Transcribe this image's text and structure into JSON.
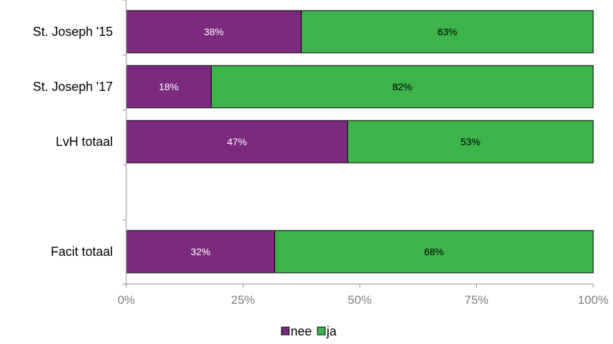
{
  "chart_data": {
    "type": "bar",
    "orientation": "horizontal",
    "stacked": true,
    "categories": [
      "St. Joseph '15",
      "St. Joseph '17",
      "LvH totaal",
      "",
      "Facit totaal"
    ],
    "series": [
      {
        "name": "nee",
        "color": "#7b2a7d",
        "values": [
          37.5,
          18.2,
          47.4,
          null,
          31.8
        ],
        "labels": [
          "38%",
          "18%",
          "47%",
          "",
          "32%"
        ]
      },
      {
        "name": "ja",
        "color": "#3cb44a",
        "values": [
          62.5,
          81.8,
          52.6,
          null,
          68.2
        ],
        "labels": [
          "63%",
          "82%",
          "53%",
          "",
          "68%"
        ]
      }
    ],
    "xlim": [
      0,
      100
    ],
    "xticks": [
      0,
      25,
      50,
      75,
      100
    ],
    "xtick_labels": [
      "0%",
      "25%",
      "50%",
      "75%",
      "100%"
    ],
    "grid": false,
    "legend_position": "bottom"
  }
}
